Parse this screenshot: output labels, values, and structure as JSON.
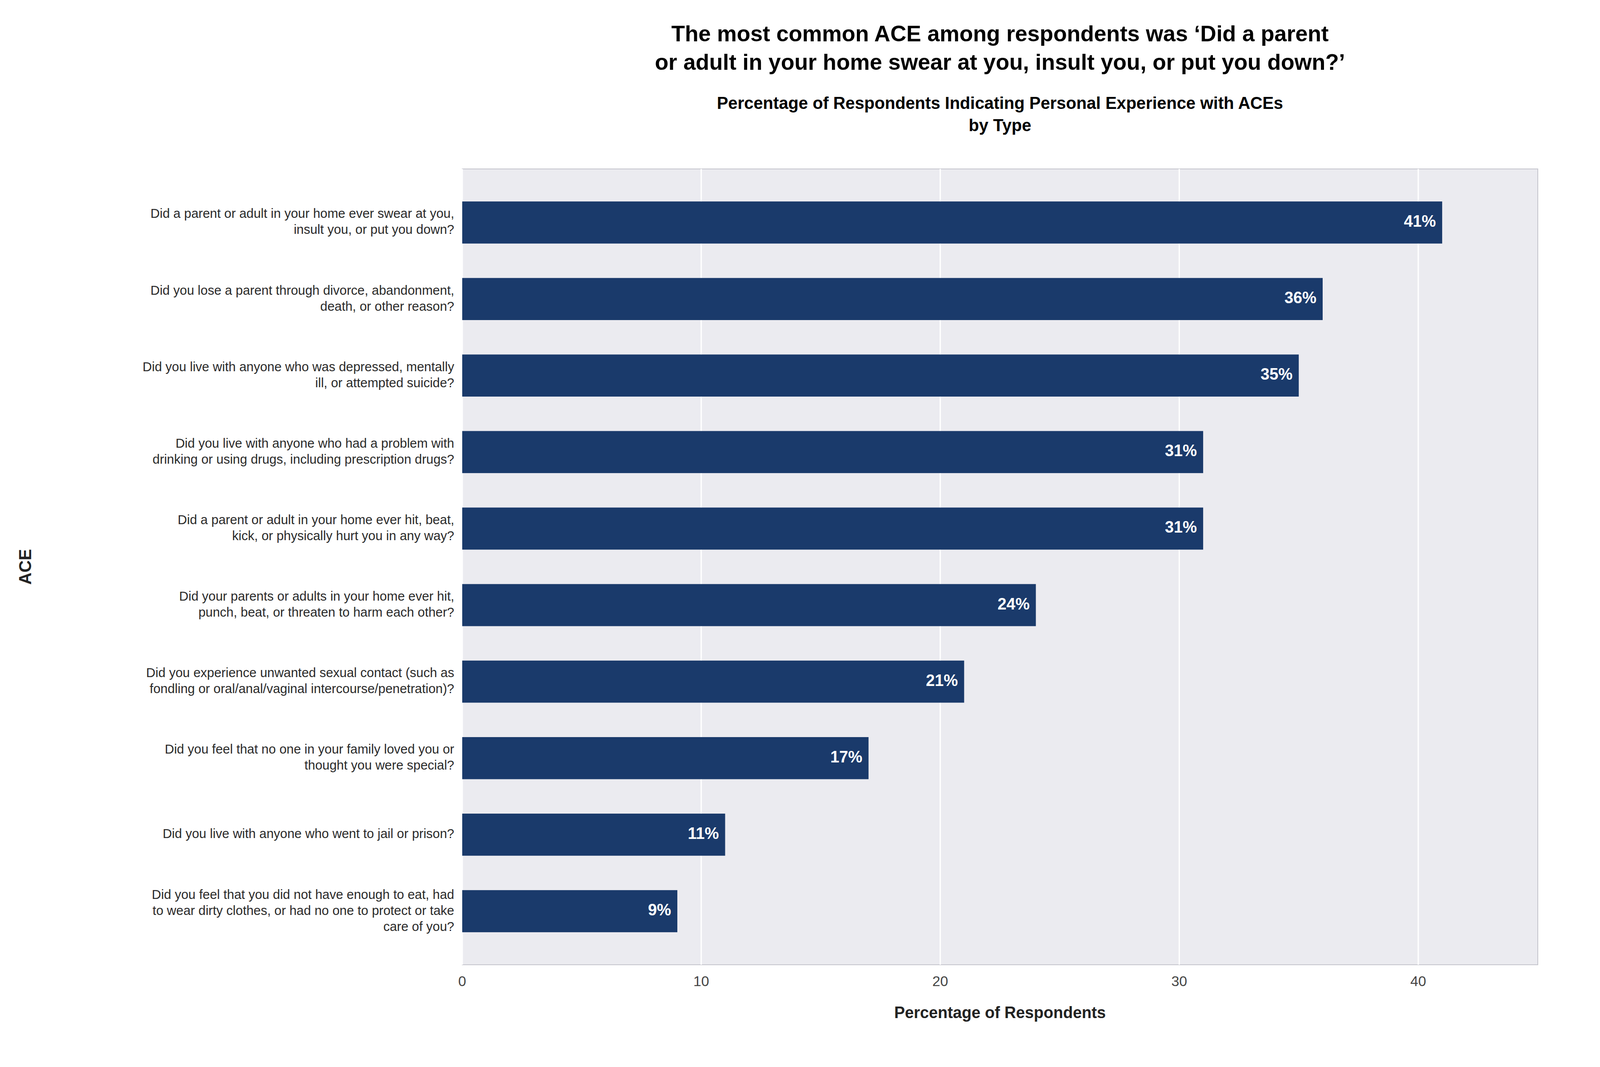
{
  "chart_data": {
    "type": "bar",
    "orientation": "horizontal",
    "title": "The most common ACE among respondents was ‘Did a parent\nor adult in your home swear at you, insult you, or put you down?’",
    "subtitle": "Percentage of Respondents Indicating Personal Experience with ACEs\nby Type",
    "x_label": "Percentage of Respondents",
    "y_label": "ACE",
    "categories": [
      "Did you feel that you did not have enough to eat, had\nto wear dirty clothes, or had no one to protect or take\ncare of you?",
      "Did you live with anyone who went to jail or prison?",
      "Did you feel that no one in your family loved you or\nthought you were special?",
      "Did you experience unwanted sexual contact (such as\nfondling or oral/anal/vaginal intercourse/penetration)?",
      "Did your parents or adults in your home ever hit,\npunch, beat, or threaten to harm each other?",
      "Did a parent or adult in your home ever hit, beat,\nkick, or physically hurt you in any way?",
      "Did you live with anyone who had a problem with\ndrinking or using drugs, including prescription drugs?",
      "Did you live with anyone who was depressed, mentally\nill, or attempted suicide?",
      "Did you lose a parent through divorce, abandonment,\ndeath, or other reason?",
      "Did a parent or adult in your home ever swear at you,\ninsult you, or put you down?"
    ],
    "values": [
      9,
      11,
      17,
      21,
      24,
      31,
      31,
      35,
      36,
      41
    ],
    "value_labels": [
      "9%",
      "11%",
      "17%",
      "21%",
      "24%",
      "31%",
      "31%",
      "35%",
      "36%",
      "41%"
    ],
    "data_labels": true,
    "color": "#1a3a6b",
    "xlim": [
      0,
      45
    ],
    "xticks": [
      0,
      10,
      20,
      30,
      40
    ],
    "grid": true
  }
}
